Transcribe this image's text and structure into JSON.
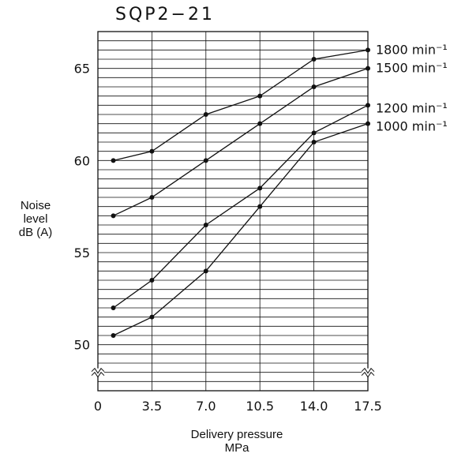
{
  "chart_data": {
    "type": "line",
    "title": "SQP2−21",
    "xlabel": "Delivery pressure",
    "xunit": "MPa",
    "ylabel": "Noise level",
    "yunit": "dB (A)",
    "xlim": [
      0,
      17.5
    ],
    "ylim": [
      47.5,
      67
    ],
    "x_ticks": [
      "0",
      "3.5",
      "7.0",
      "10.5",
      "14.0",
      "17.5"
    ],
    "y_ticks": [
      "50",
      "55",
      "60",
      "65"
    ],
    "axis_break": true,
    "grid": true,
    "x": [
      1,
      3.5,
      7.0,
      10.5,
      14.0,
      17.5
    ],
    "series": [
      {
        "name": "1800 min⁻¹",
        "values": [
          60,
          60.5,
          62.5,
          63.5,
          65.5,
          66
        ]
      },
      {
        "name": "1500 min⁻¹",
        "values": [
          57,
          58,
          60,
          62,
          64,
          65
        ]
      },
      {
        "name": "1200 min⁻¹",
        "values": [
          52,
          53.5,
          56.5,
          58.5,
          61.5,
          63
        ]
      },
      {
        "name": "1000 min⁻¹",
        "values": [
          50.5,
          51.5,
          54,
          57.5,
          61,
          62
        ]
      }
    ],
    "line_color": "#111111"
  }
}
